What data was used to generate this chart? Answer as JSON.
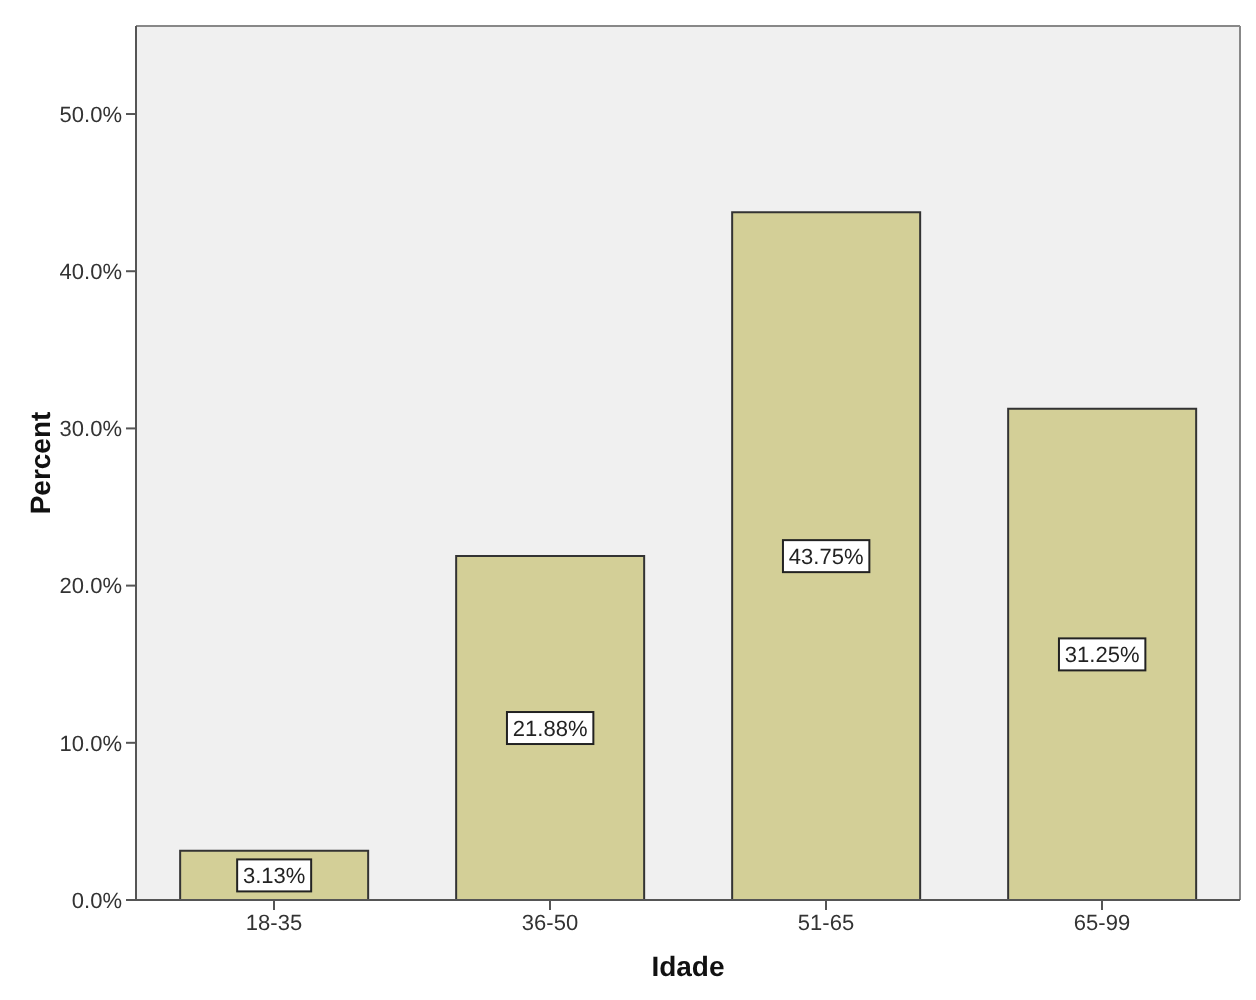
{
  "chart_data": {
    "type": "bar",
    "xlabel": "Idade",
    "ylabel": "Percent",
    "categories": [
      "18-35",
      "36-50",
      "51-65",
      "65-99"
    ],
    "values": [
      3.13,
      21.88,
      43.75,
      31.25
    ],
    "value_labels": [
      "3.13%",
      "21.88%",
      "43.75%",
      "31.25%"
    ],
    "color": "#d3cf97",
    "ylim": [
      0,
      55.6
    ],
    "yticks": [
      {
        "value": 0,
        "label": "0.0%"
      },
      {
        "value": 10,
        "label": "10.0%"
      },
      {
        "value": 20,
        "label": "20.0%"
      },
      {
        "value": 30,
        "label": "30.0%"
      },
      {
        "value": 40,
        "label": "40.0%"
      },
      {
        "value": 50,
        "label": "50.0%"
      }
    ],
    "grid": false,
    "legend": false
  }
}
